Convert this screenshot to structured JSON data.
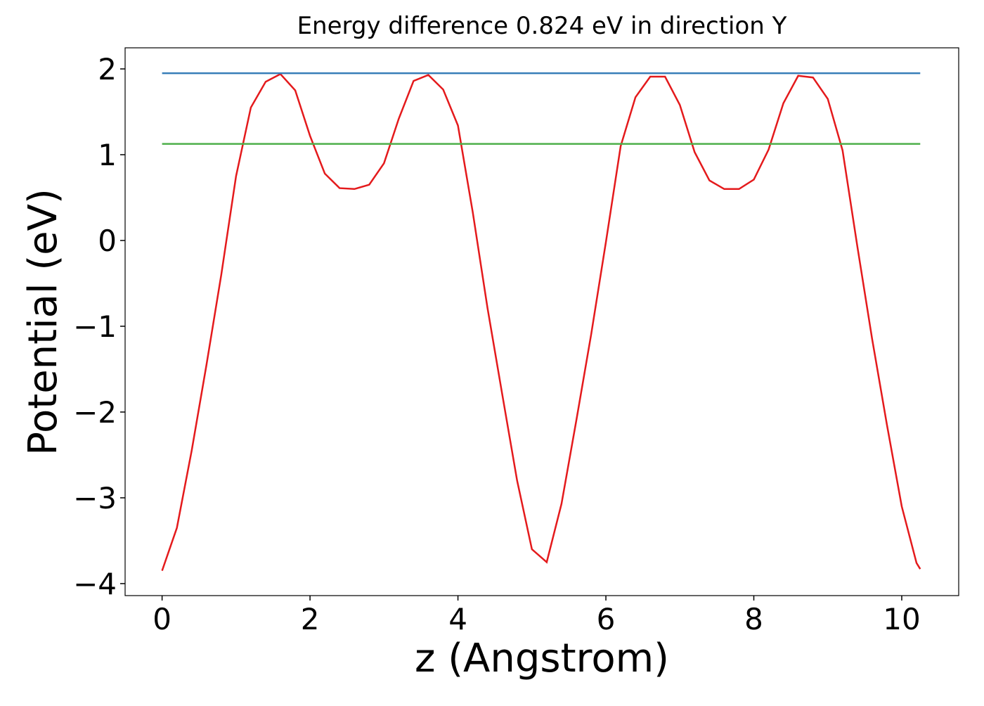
{
  "chart_data": {
    "type": "line",
    "title": "Energy difference 0.824 eV in direction Y",
    "xlabel": "z (Angstrom)",
    "ylabel": "Potential (eV)",
    "xlim": [
      -0.5,
      10.77
    ],
    "ylim": [
      -4.14,
      2.246
    ],
    "xticks": [
      0,
      2,
      4,
      6,
      8,
      10
    ],
    "yticks": [
      -4,
      -3,
      -2,
      -1,
      0,
      1,
      2
    ],
    "yticks_labels_minus": true,
    "series": [
      {
        "color": "#e41a1c",
        "x": [
          0,
          0.2,
          0.4,
          0.6,
          0.8,
          1.0,
          1.2,
          1.4,
          1.6,
          1.8,
          2.0,
          2.2,
          2.4,
          2.6,
          2.8,
          3.0,
          3.2,
          3.4,
          3.6,
          3.8,
          4.0,
          4.2,
          4.4,
          4.6,
          4.8,
          5.0,
          5.2,
          5.4,
          5.6,
          5.8,
          6.0,
          6.2,
          6.4,
          6.6,
          6.8,
          7.0,
          7.2,
          7.4,
          7.6,
          7.8,
          8.0,
          8.2,
          8.4,
          8.6,
          8.8,
          9.0,
          9.2,
          9.4,
          9.6,
          9.8,
          10.0,
          10.2,
          10.25
        ],
        "values": [
          -3.85,
          -3.35,
          -2.45,
          -1.45,
          -0.4,
          0.75,
          1.55,
          1.85,
          1.94,
          1.75,
          1.22,
          0.78,
          0.61,
          0.6,
          0.65,
          0.9,
          1.42,
          1.86,
          1.93,
          1.76,
          1.34,
          0.33,
          -0.79,
          -1.8,
          -2.8,
          -3.6,
          -3.75,
          -3.07,
          -2.1,
          -1.1,
          -0.02,
          1.1,
          1.67,
          1.91,
          1.91,
          1.58,
          1.03,
          0.7,
          0.6,
          0.6,
          0.71,
          1.06,
          1.6,
          1.92,
          1.9,
          1.65,
          1.05,
          -0.07,
          -1.15,
          -2.15,
          -3.1,
          -3.76,
          -3.83
        ]
      },
      {
        "color": "#377eb8",
        "x": [
          0,
          10.25
        ],
        "values": [
          1.95,
          1.95
        ]
      },
      {
        "color": "#4daf4a",
        "x": [
          0,
          10.25
        ],
        "values": [
          1.126,
          1.126
        ]
      }
    ]
  }
}
